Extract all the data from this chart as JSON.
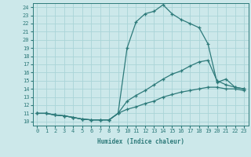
{
  "xlabel": "Humidex (Indice chaleur)",
  "ylabel": "",
  "bg_color": "#cce8ea",
  "grid_color": "#aad4d8",
  "line_color": "#2d7a7a",
  "xlim": [
    -0.5,
    23.5
  ],
  "ylim": [
    9.5,
    24.5
  ],
  "xticks": [
    0,
    1,
    2,
    3,
    4,
    5,
    6,
    7,
    8,
    9,
    10,
    11,
    12,
    13,
    14,
    15,
    16,
    17,
    18,
    19,
    20,
    21,
    22,
    23
  ],
  "yticks": [
    10,
    11,
    12,
    13,
    14,
    15,
    16,
    17,
    18,
    19,
    20,
    21,
    22,
    23,
    24
  ],
  "curve1_x": [
    0,
    1,
    2,
    3,
    4,
    5,
    6,
    7,
    8,
    9,
    10,
    11,
    12,
    13,
    14,
    15,
    16,
    17,
    18,
    19,
    20,
    21,
    22,
    23
  ],
  "curve1_y": [
    11.0,
    11.0,
    10.8,
    10.7,
    10.5,
    10.3,
    10.2,
    10.2,
    10.2,
    11.0,
    19.0,
    22.2,
    23.2,
    23.5,
    24.3,
    23.2,
    22.5,
    22.0,
    21.5,
    19.5,
    14.8,
    15.2,
    14.2,
    14.0
  ],
  "curve2_x": [
    0,
    1,
    2,
    3,
    4,
    5,
    6,
    7,
    8,
    9,
    10,
    11,
    12,
    13,
    14,
    15,
    16,
    17,
    18,
    19,
    20,
    21,
    22,
    23
  ],
  "curve2_y": [
    11.0,
    11.0,
    10.8,
    10.7,
    10.5,
    10.3,
    10.2,
    10.2,
    10.2,
    11.0,
    12.5,
    13.2,
    13.8,
    14.5,
    15.2,
    15.8,
    16.2,
    16.8,
    17.3,
    17.5,
    15.0,
    14.5,
    14.2,
    14.0
  ],
  "curve3_x": [
    0,
    1,
    2,
    3,
    4,
    5,
    6,
    7,
    8,
    9,
    10,
    11,
    12,
    13,
    14,
    15,
    16,
    17,
    18,
    19,
    20,
    21,
    22,
    23
  ],
  "curve3_y": [
    11.0,
    11.0,
    10.8,
    10.7,
    10.5,
    10.3,
    10.2,
    10.2,
    10.2,
    11.0,
    11.5,
    11.8,
    12.2,
    12.5,
    13.0,
    13.3,
    13.6,
    13.8,
    14.0,
    14.2,
    14.2,
    14.0,
    14.0,
    13.8
  ]
}
